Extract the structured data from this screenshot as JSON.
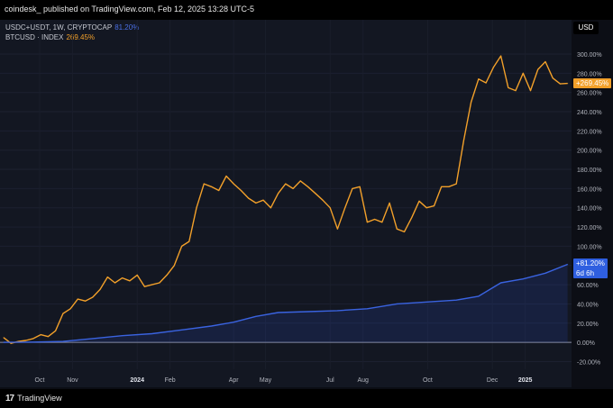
{
  "header": {
    "publisher": "coindesk_ published on TradingView.com, Feb 12, 2025 13:28 UTC-5"
  },
  "axis_unit": "USD",
  "legend": [
    {
      "label": "USDC+USDT, 1W, CRYPTOCAP",
      "value": "81.20%",
      "color": "#4a6fe3"
    },
    {
      "label": "BTCUSD · INDEX",
      "value": "269.45%",
      "color": "#f2a02a"
    }
  ],
  "tags": {
    "btc": {
      "text": "+269.45%",
      "color": "#f2a02a"
    },
    "stable": {
      "text": "+81.20%",
      "sub": "6d 6h",
      "color": "#2f5fe0"
    }
  },
  "footer": {
    "brand": "TradingView",
    "mark": "17"
  },
  "chart_data": {
    "type": "line",
    "y_unit": "%",
    "ylim": [
      -28,
      315
    ],
    "y_ticks": [
      -20,
      0,
      20,
      40,
      60,
      80,
      100,
      120,
      140,
      160,
      180,
      200,
      220,
      240,
      260,
      280,
      300
    ],
    "y_tick_labels": [
      "-20.00%",
      "0.00%",
      "20.00%",
      "40.00%",
      "60.00%",
      "80.00%",
      "100.00%",
      "120.00%",
      "140.00%",
      "160.00%",
      "180.00%",
      "200.00%",
      "220.00%",
      "240.00%",
      "260.00%",
      "280.00%",
      "300.00%"
    ],
    "xlim": [
      "2023-08-28",
      "2025-02-12"
    ],
    "x_ticks": [
      {
        "label": "Oct",
        "date": "2023-10-01"
      },
      {
        "label": "Nov",
        "date": "2023-11-01"
      },
      {
        "label": "2024",
        "date": "2024-01-01"
      },
      {
        "label": "Feb",
        "date": "2024-02-01"
      },
      {
        "label": "Apr",
        "date": "2024-04-01"
      },
      {
        "label": "May",
        "date": "2024-05-01"
      },
      {
        "label": "Jul",
        "date": "2024-07-01"
      },
      {
        "label": "Aug",
        "date": "2024-08-01"
      },
      {
        "label": "Oct",
        "date": "2024-10-01"
      },
      {
        "label": "Dec",
        "date": "2024-12-01"
      },
      {
        "label": "2025",
        "date": "2025-01-01"
      }
    ],
    "series": [
      {
        "name": "BTCUSD · INDEX",
        "color": "#f2a02a",
        "points": [
          [
            "2023-08-28",
            5
          ],
          [
            "2023-09-04",
            -1
          ],
          [
            "2023-09-11",
            1
          ],
          [
            "2023-09-18",
            2
          ],
          [
            "2023-09-25",
            4
          ],
          [
            "2023-10-02",
            8
          ],
          [
            "2023-10-09",
            6
          ],
          [
            "2023-10-16",
            12
          ],
          [
            "2023-10-23",
            30
          ],
          [
            "2023-10-30",
            35
          ],
          [
            "2023-11-06",
            45
          ],
          [
            "2023-11-13",
            43
          ],
          [
            "2023-11-20",
            47
          ],
          [
            "2023-11-27",
            55
          ],
          [
            "2023-12-04",
            68
          ],
          [
            "2023-12-11",
            62
          ],
          [
            "2023-12-18",
            67
          ],
          [
            "2023-12-25",
            64
          ],
          [
            "2024-01-01",
            70
          ],
          [
            "2024-01-08",
            58
          ],
          [
            "2024-01-15",
            60
          ],
          [
            "2024-01-22",
            62
          ],
          [
            "2024-01-29",
            70
          ],
          [
            "2024-02-05",
            80
          ],
          [
            "2024-02-12",
            100
          ],
          [
            "2024-02-19",
            105
          ],
          [
            "2024-02-26",
            140
          ],
          [
            "2024-03-04",
            165
          ],
          [
            "2024-03-11",
            162
          ],
          [
            "2024-03-18",
            158
          ],
          [
            "2024-03-25",
            173
          ],
          [
            "2024-04-01",
            165
          ],
          [
            "2024-04-08",
            158
          ],
          [
            "2024-04-15",
            150
          ],
          [
            "2024-04-22",
            145
          ],
          [
            "2024-04-29",
            148
          ],
          [
            "2024-05-06",
            140
          ],
          [
            "2024-05-13",
            155
          ],
          [
            "2024-05-20",
            165
          ],
          [
            "2024-05-27",
            160
          ],
          [
            "2024-06-03",
            168
          ],
          [
            "2024-06-10",
            162
          ],
          [
            "2024-06-17",
            155
          ],
          [
            "2024-06-24",
            148
          ],
          [
            "2024-07-01",
            140
          ],
          [
            "2024-07-08",
            118
          ],
          [
            "2024-07-15",
            140
          ],
          [
            "2024-07-22",
            160
          ],
          [
            "2024-07-29",
            162
          ],
          [
            "2024-08-05",
            125
          ],
          [
            "2024-08-12",
            128
          ],
          [
            "2024-08-19",
            125
          ],
          [
            "2024-08-26",
            145
          ],
          [
            "2024-09-02",
            118
          ],
          [
            "2024-09-09",
            115
          ],
          [
            "2024-09-16",
            130
          ],
          [
            "2024-09-23",
            147
          ],
          [
            "2024-09-30",
            140
          ],
          [
            "2024-10-07",
            142
          ],
          [
            "2024-10-14",
            162
          ],
          [
            "2024-10-21",
            162
          ],
          [
            "2024-10-28",
            165
          ],
          [
            "2024-11-04",
            210
          ],
          [
            "2024-11-11",
            250
          ],
          [
            "2024-11-18",
            274
          ],
          [
            "2024-11-25",
            270
          ],
          [
            "2024-12-02",
            286
          ],
          [
            "2024-12-09",
            298
          ],
          [
            "2024-12-16",
            265
          ],
          [
            "2024-12-23",
            262
          ],
          [
            "2024-12-30",
            280
          ],
          [
            "2025-01-06",
            262
          ],
          [
            "2025-01-13",
            284
          ],
          [
            "2025-01-20",
            292
          ],
          [
            "2025-01-27",
            275
          ],
          [
            "2025-02-03",
            269
          ],
          [
            "2025-02-10",
            269.45
          ]
        ]
      },
      {
        "name": "USDC+USDT, 1W, CRYPTOCAP",
        "color": "#3a63e0",
        "points": [
          [
            "2023-08-28",
            0
          ],
          [
            "2023-09-25",
            0.3
          ],
          [
            "2023-10-23",
            1
          ],
          [
            "2023-11-20",
            4
          ],
          [
            "2023-12-18",
            7
          ],
          [
            "2024-01-15",
            9
          ],
          [
            "2024-02-12",
            13
          ],
          [
            "2024-03-11",
            17
          ],
          [
            "2024-04-01",
            21
          ],
          [
            "2024-04-22",
            27
          ],
          [
            "2024-05-13",
            31
          ],
          [
            "2024-06-10",
            32
          ],
          [
            "2024-07-08",
            33
          ],
          [
            "2024-08-05",
            35
          ],
          [
            "2024-09-02",
            40
          ],
          [
            "2024-09-30",
            42
          ],
          [
            "2024-10-28",
            44
          ],
          [
            "2024-11-18",
            48
          ],
          [
            "2024-12-09",
            62
          ],
          [
            "2024-12-30",
            66
          ],
          [
            "2025-01-20",
            72
          ],
          [
            "2025-02-10",
            81.2
          ]
        ]
      }
    ],
    "baseline": 0,
    "title": "",
    "xlabel": "",
    "ylabel": ""
  }
}
